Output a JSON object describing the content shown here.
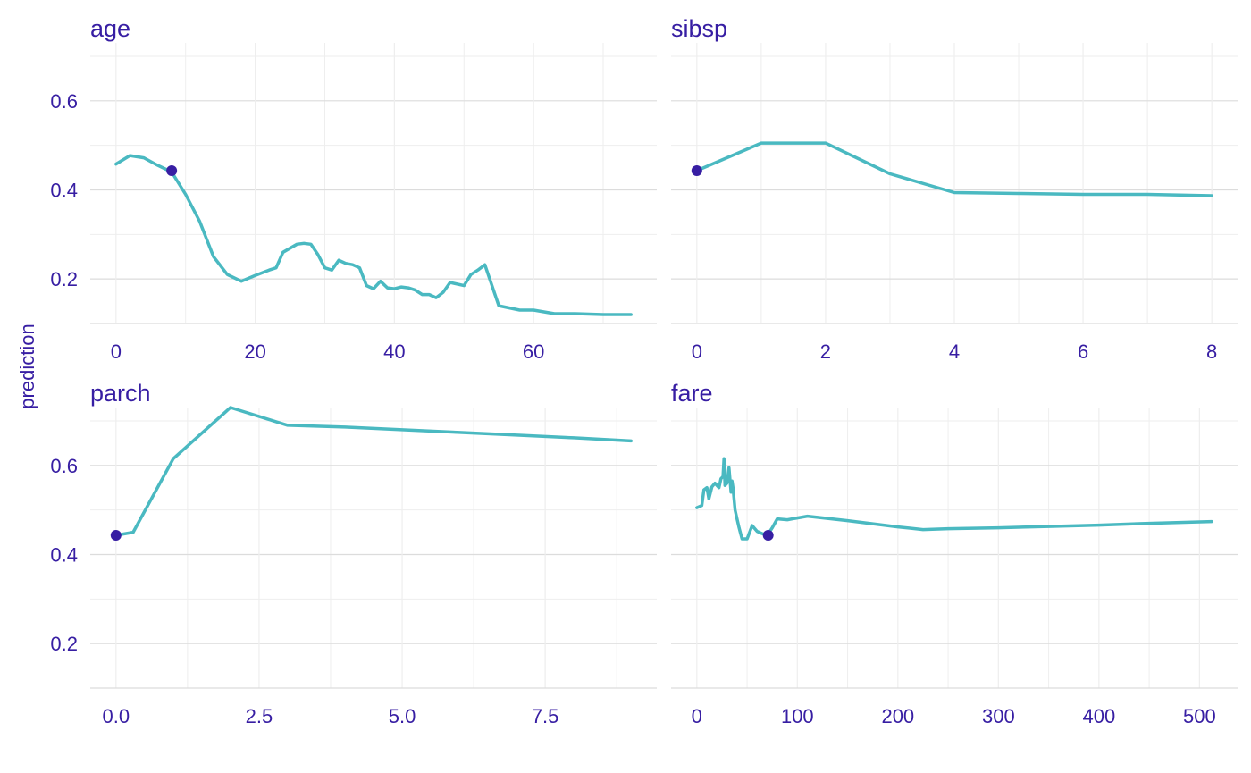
{
  "chart_data": {
    "type": "line",
    "ylabel": "prediction",
    "colors": {
      "line": "#4ab9c1",
      "point": "#371ea3",
      "text": "#371ea3",
      "grid_major": "#dcdcdc",
      "grid_minor": "#eeeeee"
    },
    "shared_y": {
      "ylim": [
        0.1,
        0.73
      ],
      "ticks": [
        0.2,
        0.4,
        0.6
      ],
      "tick_labels": [
        "0.2",
        "0.4",
        "0.6"
      ],
      "minor_ticks": [
        0.1,
        0.3,
        0.5,
        0.7
      ]
    },
    "panels": [
      {
        "title": "age",
        "xlim": [
          -3.7,
          77.7
        ],
        "x_ticks": [
          0,
          20,
          40,
          60
        ],
        "x_tick_labels": [
          "0",
          "20",
          "40",
          "60"
        ],
        "x_minor_ticks": [
          10,
          30,
          50,
          70
        ],
        "x": [
          0,
          2,
          4,
          6,
          8,
          10,
          12,
          14,
          16,
          18,
          20,
          22,
          23,
          24,
          26,
          27,
          28,
          29,
          30,
          31,
          32,
          33,
          34,
          35,
          36,
          37,
          38,
          39,
          40,
          41,
          42,
          43,
          44,
          45,
          46,
          47,
          48,
          50,
          51,
          52,
          53,
          55,
          58,
          60,
          63,
          66,
          70,
          74
        ],
        "y": [
          0.458,
          0.477,
          0.472,
          0.455,
          0.44,
          0.39,
          0.33,
          0.25,
          0.21,
          0.195,
          0.208,
          0.22,
          0.225,
          0.26,
          0.278,
          0.28,
          0.278,
          0.255,
          0.225,
          0.22,
          0.242,
          0.235,
          0.232,
          0.225,
          0.185,
          0.178,
          0.195,
          0.18,
          0.178,
          0.182,
          0.18,
          0.175,
          0.165,
          0.165,
          0.158,
          0.17,
          0.192,
          0.185,
          0.21,
          0.22,
          0.232,
          0.14,
          0.13,
          0.13,
          0.122,
          0.122,
          0.12,
          0.12
        ],
        "observation": {
          "x": 8,
          "y": 0.443
        }
      },
      {
        "title": "sibsp",
        "xlim": [
          -0.4,
          8.4
        ],
        "x_ticks": [
          0,
          2,
          4,
          6,
          8
        ],
        "x_tick_labels": [
          "0",
          "2",
          "4",
          "6",
          "8"
        ],
        "x_minor_ticks": [
          1,
          3,
          5,
          7
        ],
        "x": [
          0,
          1,
          2,
          3,
          4,
          5,
          6,
          7,
          8
        ],
        "y": [
          0.443,
          0.505,
          0.505,
          0.436,
          0.394,
          0.392,
          0.39,
          0.39,
          0.387
        ],
        "observation": {
          "x": 0,
          "y": 0.443
        }
      },
      {
        "title": "parch",
        "xlim": [
          -0.45,
          9.45
        ],
        "x_ticks": [
          0,
          2.5,
          5,
          7.5
        ],
        "x_tick_labels": [
          "0.0",
          "2.5",
          "5.0",
          "7.5"
        ],
        "x_minor_ticks": [
          1.25,
          3.75,
          6.25,
          8.75
        ],
        "x": [
          0,
          0.3,
          1,
          2,
          3,
          4,
          5,
          6,
          7,
          8,
          9
        ],
        "y": [
          0.443,
          0.45,
          0.615,
          0.73,
          0.69,
          0.686,
          0.68,
          0.674,
          0.668,
          0.662,
          0.655
        ],
        "observation": {
          "x": 0,
          "y": 0.443
        }
      },
      {
        "title": "fare",
        "xlim": [
          -25.6,
          537.9
        ],
        "x_ticks": [
          0,
          100,
          200,
          300,
          400,
          500
        ],
        "x_tick_labels": [
          "0",
          "100",
          "200",
          "300",
          "400",
          "500"
        ],
        "x_minor_ticks": [
          50,
          150,
          250,
          350,
          450
        ],
        "x": [
          0,
          5,
          7,
          10,
          12,
          15,
          18,
          20,
          22,
          24,
          26,
          27,
          28,
          30,
          32,
          34,
          35,
          36,
          38,
          40,
          42,
          45,
          50,
          55,
          60,
          65,
          70,
          75,
          80,
          90,
          110,
          150,
          200,
          225,
          250,
          300,
          350,
          400,
          450,
          512
        ],
        "y": [
          0.505,
          0.51,
          0.545,
          0.55,
          0.525,
          0.552,
          0.56,
          0.555,
          0.55,
          0.57,
          0.575,
          0.615,
          0.555,
          0.56,
          0.595,
          0.54,
          0.565,
          0.55,
          0.5,
          0.48,
          0.46,
          0.435,
          0.435,
          0.465,
          0.452,
          0.447,
          0.443,
          0.46,
          0.48,
          0.478,
          0.486,
          0.476,
          0.462,
          0.456,
          0.458,
          0.46,
          0.463,
          0.466,
          0.47,
          0.474
        ],
        "observation": {
          "x": 71,
          "y": 0.443
        }
      }
    ]
  }
}
